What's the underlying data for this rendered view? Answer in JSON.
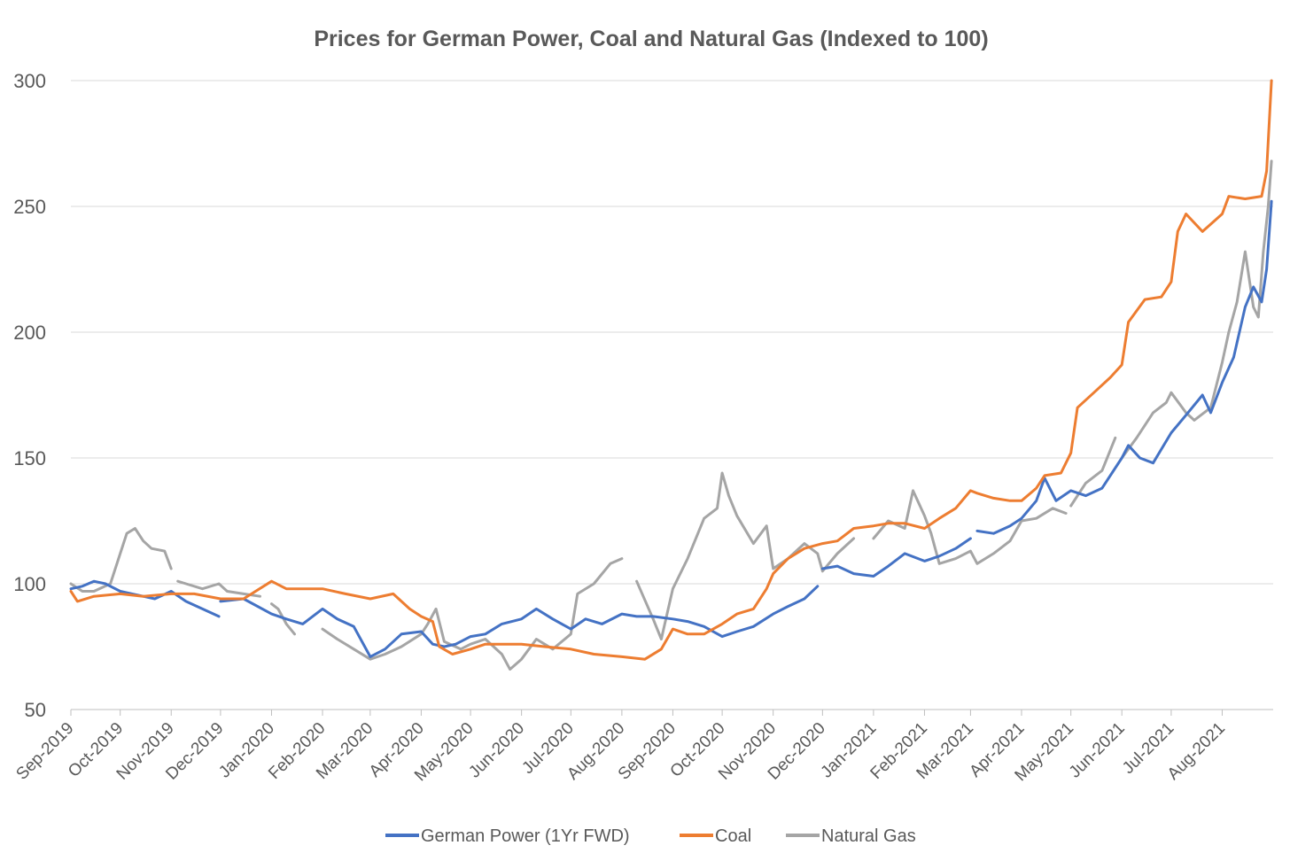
{
  "chart_data": {
    "type": "line",
    "title": "Prices for German Power, Coal and Natural Gas (Indexed to 100)",
    "xlabel": "",
    "ylabel": "",
    "ylim": [
      50,
      300
    ],
    "yticks": [
      50,
      100,
      150,
      200,
      250,
      300
    ],
    "grid": true,
    "legend_position": "bottom",
    "x_ticks": [
      "Sep-2019",
      "Oct-2019",
      "Nov-2019",
      "Dec-2019",
      "Jan-2020",
      "Feb-2020",
      "Mar-2020",
      "Apr-2020",
      "May-2020",
      "Jun-2020",
      "Jul-2020",
      "Aug-2020",
      "Sep-2020",
      "Oct-2020",
      "Nov-2020",
      "Dec-2020",
      "Jan-2021",
      "Feb-2021",
      "Mar-2021",
      "Apr-2021",
      "May-2021",
      "Jun-2021",
      "Jul-2021",
      "Aug-2021"
    ],
    "x_end": "Sep-2021",
    "series": [
      {
        "name": "German Power (1Yr FWD)",
        "color": "#4472c4",
        "points": [
          [
            "2019-09-01",
            98
          ],
          [
            "2019-09-08",
            99
          ],
          [
            "2019-09-15",
            101
          ],
          [
            "2019-09-22",
            100
          ],
          [
            "2019-10-01",
            97
          ],
          [
            "2019-10-08",
            96
          ],
          [
            "2019-10-15",
            95
          ],
          [
            "2019-10-22",
            94
          ],
          [
            "2019-11-01",
            97
          ],
          [
            "2019-11-10",
            93
          ],
          [
            "2019-11-20",
            90
          ],
          [
            "2019-11-30",
            87
          ],
          null,
          [
            "2019-12-01",
            93
          ],
          [
            "2019-12-15",
            94
          ],
          [
            "2020-01-01",
            88
          ],
          [
            "2020-01-10",
            86
          ],
          [
            "2020-01-20",
            84
          ],
          [
            "2020-02-01",
            90
          ],
          [
            "2020-02-10",
            86
          ],
          [
            "2020-02-20",
            83
          ],
          [
            "2020-03-01",
            71
          ],
          [
            "2020-03-10",
            74
          ],
          [
            "2020-03-20",
            80
          ],
          [
            "2020-04-01",
            81
          ],
          [
            "2020-04-08",
            76
          ],
          [
            "2020-04-15",
            75
          ],
          [
            "2020-04-22",
            76
          ],
          [
            "2020-05-01",
            79
          ],
          [
            "2020-05-10",
            80
          ],
          [
            "2020-05-20",
            84
          ],
          [
            "2020-06-01",
            86
          ],
          [
            "2020-06-10",
            90
          ],
          [
            "2020-06-20",
            86
          ],
          [
            "2020-07-01",
            82
          ],
          [
            "2020-07-10",
            86
          ],
          [
            "2020-07-20",
            84
          ],
          [
            "2020-08-01",
            88
          ],
          [
            "2020-08-10",
            87
          ],
          [
            "2020-08-20",
            87
          ],
          [
            "2020-09-01",
            86
          ],
          [
            "2020-09-10",
            85
          ],
          [
            "2020-09-20",
            83
          ],
          [
            "2020-10-01",
            79
          ],
          [
            "2020-10-10",
            81
          ],
          [
            "2020-10-20",
            83
          ],
          [
            "2020-11-01",
            88
          ],
          [
            "2020-11-10",
            91
          ],
          [
            "2020-11-20",
            94
          ],
          [
            "2020-11-28",
            99
          ],
          null,
          [
            "2020-12-01",
            106
          ],
          [
            "2020-12-10",
            107
          ],
          [
            "2020-12-20",
            104
          ],
          [
            "2021-01-01",
            103
          ],
          [
            "2021-01-10",
            107
          ],
          [
            "2021-01-20",
            112
          ],
          [
            "2021-02-01",
            109
          ],
          [
            "2021-02-10",
            111
          ],
          [
            "2021-02-20",
            114
          ],
          [
            "2021-03-01",
            118
          ],
          null,
          [
            "2021-03-05",
            121
          ],
          [
            "2021-03-15",
            120
          ],
          [
            "2021-03-25",
            123
          ],
          [
            "2021-04-01",
            126
          ],
          [
            "2021-04-10",
            133
          ],
          [
            "2021-04-15",
            142
          ],
          [
            "2021-04-22",
            133
          ],
          [
            "2021-05-01",
            137
          ],
          [
            "2021-05-10",
            135
          ],
          [
            "2021-05-20",
            138
          ],
          [
            "2021-06-01",
            150
          ],
          [
            "2021-06-05",
            155
          ],
          [
            "2021-06-12",
            150
          ],
          [
            "2021-06-20",
            148
          ],
          [
            "2021-07-01",
            160
          ],
          [
            "2021-07-10",
            167
          ],
          [
            "2021-07-20",
            175
          ],
          [
            "2021-07-25",
            168
          ],
          [
            "2021-08-01",
            180
          ],
          [
            "2021-08-08",
            190
          ],
          [
            "2021-08-15",
            210
          ],
          [
            "2021-08-20",
            218
          ],
          [
            "2021-08-25",
            212
          ],
          [
            "2021-08-28",
            225
          ],
          [
            "2021-08-31",
            252
          ]
        ]
      },
      {
        "name": "Coal",
        "color": "#ed7d31",
        "points": [
          [
            "2019-09-01",
            97
          ],
          [
            "2019-09-05",
            93
          ],
          [
            "2019-09-15",
            95
          ],
          [
            "2019-10-01",
            96
          ],
          [
            "2019-10-15",
            95
          ],
          [
            "2019-11-01",
            96
          ],
          [
            "2019-11-15",
            96
          ],
          [
            "2019-12-01",
            94
          ],
          [
            "2019-12-15",
            94
          ],
          [
            "2020-01-01",
            101
          ],
          [
            "2020-01-10",
            98
          ],
          [
            "2020-01-20",
            98
          ],
          [
            "2020-02-01",
            98
          ],
          [
            "2020-02-15",
            96
          ],
          [
            "2020-03-01",
            94
          ],
          [
            "2020-03-15",
            96
          ],
          [
            "2020-03-25",
            90
          ],
          [
            "2020-04-01",
            87
          ],
          [
            "2020-04-08",
            85
          ],
          [
            "2020-04-12",
            75
          ],
          [
            "2020-04-20",
            72
          ],
          [
            "2020-05-01",
            74
          ],
          [
            "2020-05-10",
            76
          ],
          [
            "2020-05-20",
            76
          ],
          [
            "2020-06-01",
            76
          ],
          [
            "2020-06-15",
            75
          ],
          [
            "2020-07-01",
            74
          ],
          [
            "2020-07-15",
            72
          ],
          [
            "2020-08-01",
            71
          ],
          [
            "2020-08-15",
            70
          ],
          [
            "2020-08-25",
            74
          ],
          [
            "2020-09-01",
            82
          ],
          [
            "2020-09-10",
            80
          ],
          [
            "2020-09-20",
            80
          ],
          [
            "2020-10-01",
            84
          ],
          [
            "2020-10-10",
            88
          ],
          [
            "2020-10-20",
            90
          ],
          [
            "2020-10-28",
            98
          ],
          [
            "2020-11-01",
            104
          ],
          [
            "2020-11-10",
            110
          ],
          [
            "2020-11-20",
            114
          ],
          [
            "2020-12-01",
            116
          ],
          [
            "2020-12-10",
            117
          ],
          [
            "2020-12-20",
            122
          ],
          [
            "2021-01-01",
            123
          ],
          [
            "2021-01-10",
            124
          ],
          [
            "2021-01-20",
            124
          ],
          [
            "2021-02-01",
            122
          ],
          [
            "2021-02-10",
            126
          ],
          [
            "2021-02-20",
            130
          ],
          [
            "2021-03-01",
            137
          ],
          [
            "2021-03-05",
            136
          ],
          [
            "2021-03-15",
            134
          ],
          [
            "2021-03-25",
            133
          ],
          [
            "2021-04-01",
            133
          ],
          [
            "2021-04-10",
            138
          ],
          [
            "2021-04-15",
            143
          ],
          [
            "2021-04-25",
            144
          ],
          [
            "2021-05-01",
            152
          ],
          [
            "2021-05-05",
            170
          ],
          [
            "2021-05-15",
            176
          ],
          [
            "2021-05-25",
            182
          ],
          [
            "2021-06-01",
            187
          ],
          [
            "2021-06-05",
            204
          ],
          [
            "2021-06-15",
            213
          ],
          [
            "2021-06-25",
            214
          ],
          [
            "2021-07-01",
            220
          ],
          [
            "2021-07-05",
            240
          ],
          [
            "2021-07-10",
            247
          ],
          [
            "2021-07-20",
            240
          ],
          [
            "2021-08-01",
            247
          ],
          [
            "2021-08-05",
            254
          ],
          [
            "2021-08-15",
            253
          ],
          [
            "2021-08-25",
            254
          ],
          [
            "2021-08-28",
            264
          ],
          [
            "2021-08-31",
            300
          ]
        ]
      },
      {
        "name": "Natural Gas",
        "color": "#a5a5a5",
        "points": [
          [
            "2019-09-01",
            100
          ],
          [
            "2019-09-08",
            97
          ],
          [
            "2019-09-15",
            97
          ],
          [
            "2019-09-25",
            100
          ],
          [
            "2019-10-01",
            112
          ],
          [
            "2019-10-05",
            120
          ],
          [
            "2019-10-10",
            122
          ],
          [
            "2019-10-15",
            117
          ],
          [
            "2019-10-20",
            114
          ],
          [
            "2019-10-28",
            113
          ],
          [
            "2019-11-01",
            106
          ],
          null,
          [
            "2019-11-05",
            101
          ],
          [
            "2019-11-10",
            100
          ],
          [
            "2019-11-20",
            98
          ],
          [
            "2019-11-30",
            100
          ],
          [
            "2019-12-05",
            97
          ],
          [
            "2019-12-15",
            96
          ],
          [
            "2019-12-25",
            95
          ],
          null,
          [
            "2020-01-01",
            92
          ],
          [
            "2020-01-05",
            90
          ],
          [
            "2020-01-10",
            84
          ],
          [
            "2020-01-15",
            80
          ],
          null,
          [
            "2020-02-01",
            82
          ],
          [
            "2020-02-10",
            78
          ],
          [
            "2020-02-20",
            74
          ],
          [
            "2020-03-01",
            70
          ],
          [
            "2020-03-10",
            72
          ],
          [
            "2020-03-20",
            75
          ],
          [
            "2020-04-01",
            80
          ],
          [
            "2020-04-05",
            84
          ],
          [
            "2020-04-10",
            90
          ],
          [
            "2020-04-15",
            77
          ],
          [
            "2020-04-25",
            74
          ],
          [
            "2020-05-01",
            76
          ],
          [
            "2020-05-10",
            78
          ],
          [
            "2020-05-20",
            72
          ],
          [
            "2020-05-25",
            66
          ],
          [
            "2020-06-01",
            70
          ],
          [
            "2020-06-10",
            78
          ],
          [
            "2020-06-20",
            74
          ],
          [
            "2020-07-01",
            80
          ],
          [
            "2020-07-05",
            96
          ],
          [
            "2020-07-15",
            100
          ],
          [
            "2020-07-25",
            108
          ],
          [
            "2020-08-01",
            110
          ],
          null,
          [
            "2020-08-10",
            101
          ],
          [
            "2020-08-20",
            86
          ],
          [
            "2020-08-25",
            78
          ],
          [
            "2020-09-01",
            98
          ],
          [
            "2020-09-10",
            110
          ],
          [
            "2020-09-20",
            126
          ],
          [
            "2020-09-28",
            130
          ],
          [
            "2020-10-01",
            144
          ],
          [
            "2020-10-05",
            135
          ],
          [
            "2020-10-10",
            127
          ],
          [
            "2020-10-20",
            116
          ],
          [
            "2020-10-28",
            123
          ],
          [
            "2020-11-01",
            106
          ],
          [
            "2020-11-10",
            110
          ],
          [
            "2020-11-20",
            116
          ],
          [
            "2020-11-28",
            112
          ],
          [
            "2020-12-01",
            105
          ],
          [
            "2020-12-10",
            112
          ],
          [
            "2020-12-20",
            118
          ],
          null,
          [
            "2021-01-01",
            118
          ],
          [
            "2021-01-10",
            125
          ],
          [
            "2021-01-20",
            122
          ],
          [
            "2021-01-25",
            137
          ],
          [
            "2021-02-01",
            127
          ],
          [
            "2021-02-05",
            120
          ],
          [
            "2021-02-10",
            108
          ],
          [
            "2021-02-20",
            110
          ],
          [
            "2021-03-01",
            113
          ],
          [
            "2021-03-05",
            108
          ],
          [
            "2021-03-15",
            112
          ],
          [
            "2021-03-25",
            117
          ],
          [
            "2021-04-01",
            125
          ],
          [
            "2021-04-10",
            126
          ],
          [
            "2021-04-20",
            130
          ],
          [
            "2021-04-28",
            128
          ],
          null,
          [
            "2021-05-01",
            131
          ],
          [
            "2021-05-10",
            140
          ],
          [
            "2021-05-20",
            145
          ],
          [
            "2021-05-28",
            158
          ],
          null,
          [
            "2021-06-01",
            150
          ],
          [
            "2021-06-10",
            158
          ],
          [
            "2021-06-20",
            168
          ],
          [
            "2021-06-28",
            172
          ],
          [
            "2021-07-01",
            176
          ],
          [
            "2021-07-10",
            168
          ],
          [
            "2021-07-15",
            165
          ],
          [
            "2021-07-25",
            170
          ],
          [
            "2021-08-01",
            188
          ],
          [
            "2021-08-05",
            200
          ],
          [
            "2021-08-10",
            212
          ],
          [
            "2021-08-15",
            232
          ],
          [
            "2021-08-20",
            210
          ],
          [
            "2021-08-23",
            206
          ],
          [
            "2021-08-26",
            232
          ],
          [
            "2021-08-29",
            250
          ],
          [
            "2021-08-31",
            268
          ]
        ]
      }
    ]
  }
}
